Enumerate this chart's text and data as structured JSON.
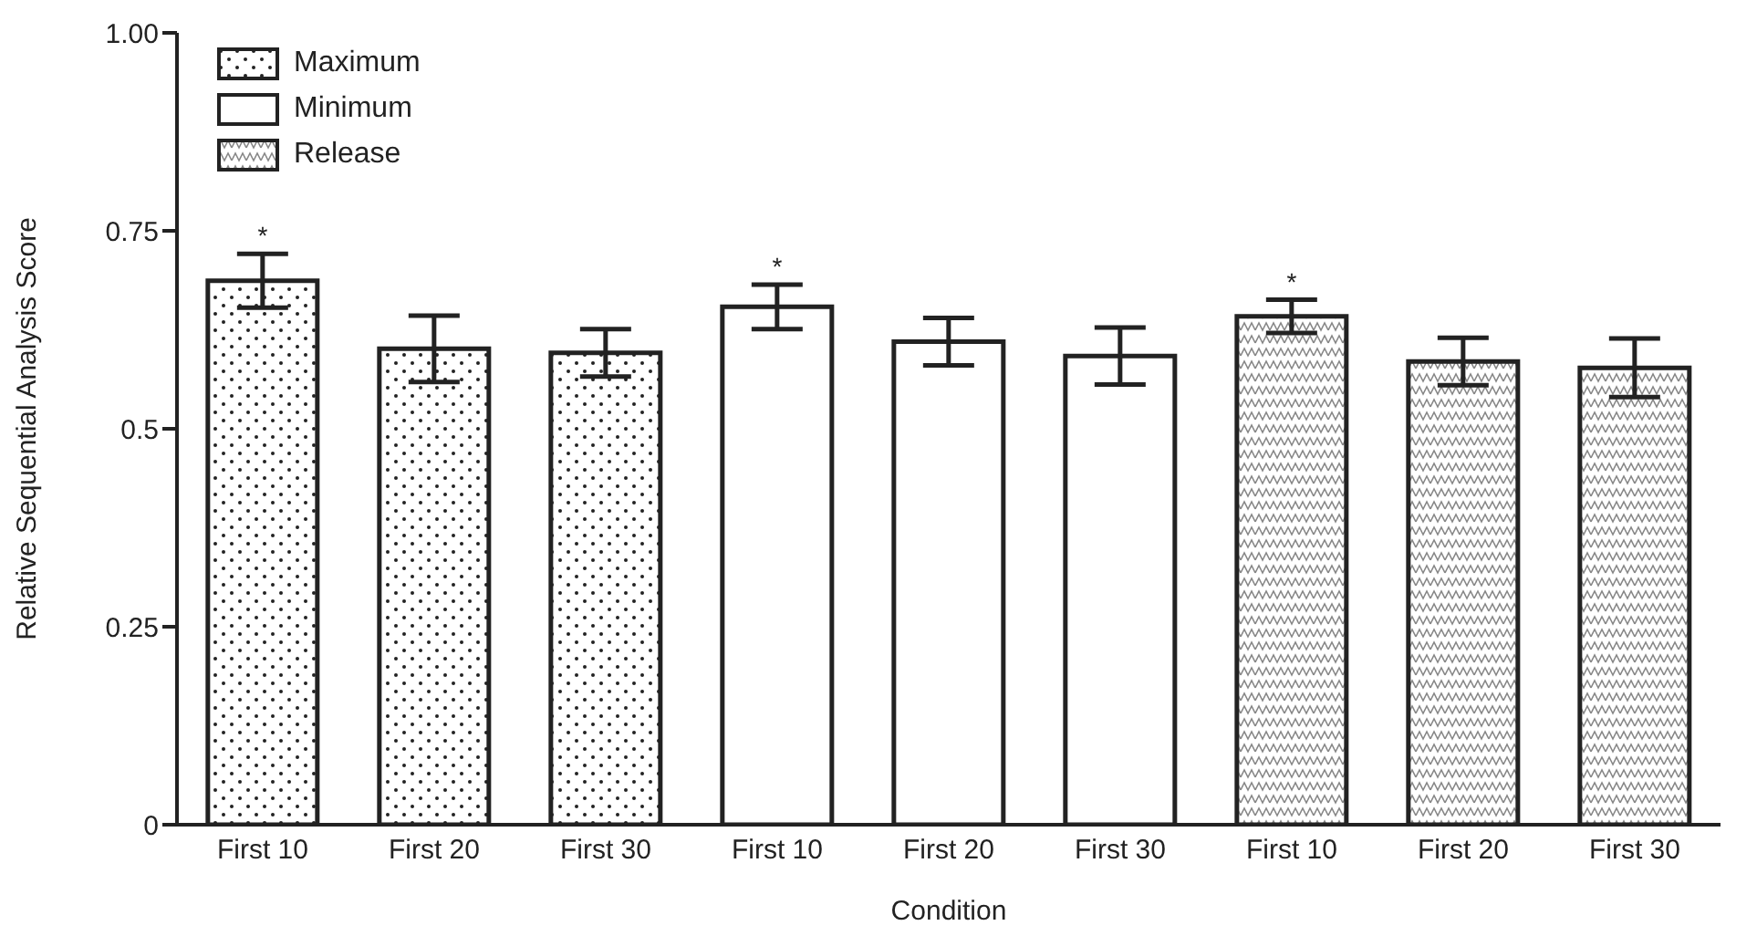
{
  "chart_data": {
    "type": "bar",
    "xlabel": "Condition",
    "ylabel": "Relative Sequential Analysis Score",
    "categories": [
      "First 10",
      "First 20",
      "First 30",
      "First 10",
      "First 20",
      "First 30",
      "First 10",
      "First 20",
      "First 30"
    ],
    "series": [
      {
        "name": "Maximum",
        "color": "#222222",
        "values": [
          0.687,
          0.601,
          0.596,
          null,
          null,
          null,
          null,
          null,
          null
        ],
        "errors": [
          0.034,
          0.042,
          0.03,
          null,
          null,
          null,
          null,
          null,
          null
        ],
        "value_labels": [
          "*",
          null,
          null,
          null,
          null,
          null,
          null,
          null,
          null
        ]
      },
      {
        "name": "Minimum",
        "color": "#ffffff",
        "values": [
          null,
          null,
          null,
          0.654,
          0.61,
          0.592,
          null,
          null,
          null
        ],
        "errors": [
          null,
          null,
          null,
          0.028,
          0.03,
          0.036,
          null,
          null,
          null
        ],
        "value_labels": [
          null,
          null,
          null,
          "*",
          null,
          null,
          null,
          null,
          null
        ]
      },
      {
        "name": "Release",
        "color": "#222222",
        "values": [
          null,
          null,
          null,
          null,
          null,
          null,
          0.642,
          0.585,
          0.577
        ],
        "errors": [
          null,
          null,
          null,
          null,
          null,
          null,
          0.021,
          0.03,
          0.037
        ],
        "value_labels": [
          null,
          null,
          null,
          null,
          null,
          null,
          "*",
          null,
          null
        ]
      }
    ],
    "ylim": [
      0,
      1
    ],
    "yticks": [
      0,
      0.25,
      0.5,
      0.75,
      {
        "value": 1,
        "label": "1.00"
      }
    ],
    "legend": "top left"
  }
}
